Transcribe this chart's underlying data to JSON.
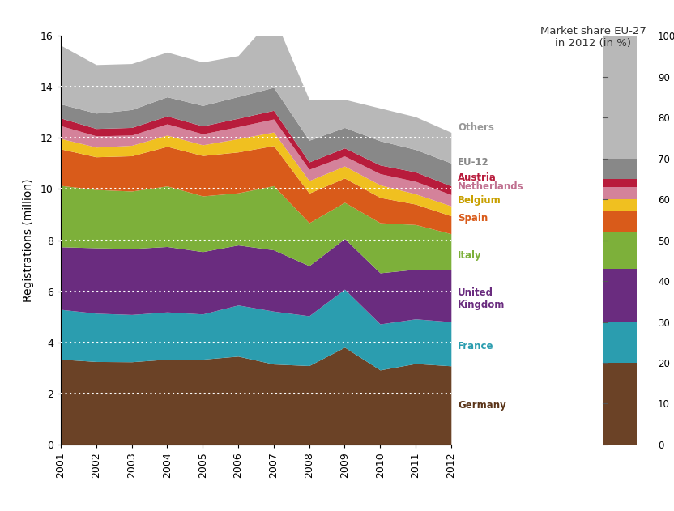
{
  "years": [
    2001,
    2002,
    2003,
    2004,
    2005,
    2006,
    2007,
    2008,
    2009,
    2010,
    2011,
    2012
  ],
  "series": {
    "Germany": [
      3.34,
      3.25,
      3.24,
      3.34,
      3.34,
      3.46,
      3.15,
      3.09,
      3.81,
      2.92,
      3.17,
      3.08
    ],
    "France": [
      1.95,
      1.89,
      1.85,
      1.85,
      1.77,
      2.0,
      2.07,
      1.95,
      2.27,
      1.8,
      1.75,
      1.73
    ],
    "United Kingdom": [
      2.45,
      2.56,
      2.58,
      2.56,
      2.44,
      2.35,
      2.4,
      1.96,
      1.98,
      2.0,
      1.94,
      2.04
    ],
    "Italy": [
      2.4,
      2.28,
      2.25,
      2.37,
      2.18,
      2.04,
      2.51,
      1.68,
      1.42,
      1.96,
      1.75,
      1.4
    ],
    "Spain": [
      1.43,
      1.28,
      1.38,
      1.55,
      1.58,
      1.6,
      1.57,
      1.16,
      0.95,
      0.99,
      0.8,
      0.7
    ],
    "Belgium": [
      0.41,
      0.38,
      0.41,
      0.44,
      0.42,
      0.52,
      0.53,
      0.49,
      0.47,
      0.49,
      0.4,
      0.39
    ],
    "Netherlands": [
      0.5,
      0.44,
      0.4,
      0.44,
      0.43,
      0.47,
      0.51,
      0.44,
      0.39,
      0.44,
      0.49,
      0.44
    ],
    "Austria": [
      0.3,
      0.29,
      0.3,
      0.31,
      0.31,
      0.33,
      0.34,
      0.29,
      0.32,
      0.34,
      0.37,
      0.34
    ],
    "EU-12": [
      0.55,
      0.6,
      0.7,
      0.75,
      0.8,
      0.85,
      0.9,
      0.85,
      0.8,
      0.95,
      0.88,
      0.9
    ],
    "Others": [
      2.3,
      1.9,
      1.8,
      1.75,
      1.7,
      1.6,
      2.8,
      1.6,
      1.1,
      1.28,
      1.28,
      1.2
    ]
  },
  "colors": {
    "Germany": "#6b4226",
    "France": "#2b9daf",
    "United Kingdom": "#6a2c7f",
    "Italy": "#7db03a",
    "Spain": "#d95b1a",
    "Belgium": "#f0c020",
    "Netherlands": "#d4829a",
    "Austria": "#b81c3c",
    "EU-12": "#888888",
    "Others": "#b8b8b8"
  },
  "text_colors": {
    "Germany": "#5a3418",
    "France": "#2b9daf",
    "United Kingdom": "#6a2c7f",
    "Italy": "#7db03a",
    "Spain": "#d95b1a",
    "Belgium": "#c8a000",
    "Netherlands": "#c07090",
    "Austria": "#b81c3c",
    "EU-12": "#888888",
    "Others": "#999999"
  },
  "market_shares": {
    "Germany": 20,
    "France": 10,
    "United Kingdom": 13,
    "Italy": 9,
    "Spain": 5,
    "Belgium": 3,
    "Netherlands": 3,
    "Austria": 2,
    "EU-12": 5,
    "Others": 30
  },
  "label_ypos": {
    "Germany": 1.54,
    "France": 3.85,
    "United Kingdom": 5.7,
    "Italy": 7.4,
    "Spain": 8.85,
    "Belgium": 9.55,
    "Netherlands": 10.08,
    "Austria": 10.45,
    "EU-12": 11.05,
    "Others": 12.4
  },
  "label_text": {
    "Germany": "Germany",
    "France": "France",
    "United Kingdom": "United\nKingdom",
    "Italy": "Italy",
    "Spain": "Spain",
    "Belgium": "Belgium",
    "Netherlands": "Netherlands",
    "Austria": "Austria",
    "EU-12": "EU-12",
    "Others": "Others"
  },
  "ylim": [
    0,
    16
  ],
  "yticks": [
    0,
    2,
    4,
    6,
    8,
    10,
    12,
    14,
    16
  ],
  "ylabel": "Registrations (million)",
  "bar_title": "Market share EU-27\nin 2012 (in %)",
  "bar_yticks": [
    0,
    10,
    20,
    30,
    40,
    50,
    60,
    70,
    80,
    90,
    100
  ]
}
